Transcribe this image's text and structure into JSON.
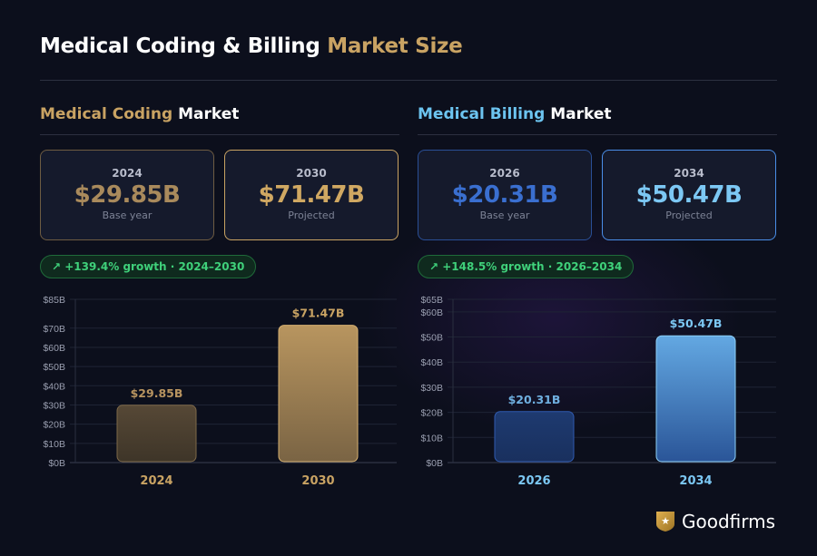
{
  "title": {
    "part1": "Medical Coding & Billing",
    "part2": "Market Size"
  },
  "coding": {
    "heading": {
      "accent": "Medical Coding",
      "rest": "Market"
    },
    "cards": [
      {
        "year": "2024",
        "value": "$29.85B",
        "label": "Base year"
      },
      {
        "year": "2030",
        "value": "$71.47B",
        "label": "Projected"
      }
    ],
    "growth": "+139.4% growth · 2024–2030"
  },
  "billing": {
    "heading": {
      "accent": "Medical Billing",
      "rest": "Market"
    },
    "cards": [
      {
        "year": "2026",
        "value": "$20.31B",
        "label": "Base year"
      },
      {
        "year": "2034",
        "value": "$50.47B",
        "label": "Projected"
      }
    ],
    "growth": "+148.5% growth · 2026–2034"
  },
  "logo": "Goodfirms",
  "colors": {
    "gold": "#c9a363",
    "blue": "#6cc4f0",
    "green": "#3fd07a",
    "background": "#0c0f1c"
  },
  "chart_data": [
    {
      "type": "bar",
      "categories": [
        "2024",
        "2030"
      ],
      "values": [
        29.85,
        71.47
      ],
      "data_labels": [
        "$29.85B",
        "$71.47B"
      ],
      "ylim": [
        0,
        85
      ],
      "yticks": [
        "$0B",
        "$10B",
        "$20B",
        "$30B",
        "$40B",
        "$50B",
        "$60B",
        "$70B",
        "$85B"
      ],
      "ytick_values": [
        0,
        10,
        20,
        30,
        40,
        50,
        60,
        70,
        85
      ],
      "grid": true,
      "colors": [
        "#5a4a36",
        "#b8945e"
      ]
    },
    {
      "type": "bar",
      "categories": [
        "2026",
        "2034"
      ],
      "values": [
        20.31,
        50.47
      ],
      "data_labels": [
        "$20.31B",
        "$50.47B"
      ],
      "ylim": [
        0,
        65
      ],
      "yticks": [
        "$0B",
        "$10B",
        "$20B",
        "$30B",
        "$40B",
        "$50B",
        "$60B",
        "$65B"
      ],
      "ytick_values": [
        0,
        10,
        20,
        30,
        40,
        50,
        60,
        65
      ],
      "grid": true,
      "colors": [
        "#1d3466",
        "#5aa3e0"
      ]
    }
  ]
}
